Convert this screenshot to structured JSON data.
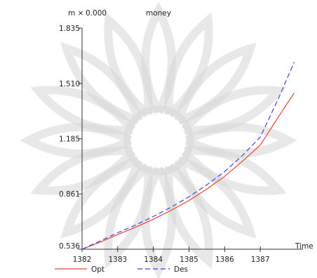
{
  "header": {
    "y_variable": "m ×",
    "y_value": "0.000",
    "title": "money"
  },
  "chart_data": {
    "type": "line",
    "title": "money",
    "xlabel": "Time",
    "ylabel": "",
    "x_ticks": [
      "1382",
      "1383",
      "1384",
      "1385",
      "1386",
      "1387"
    ],
    "y_ticks": [
      "0.536",
      "0.861",
      "1.185",
      "1.510",
      "1.835"
    ],
    "xlim": [
      1382,
      1388.0
    ],
    "ylim": [
      0.536,
      1.835
    ],
    "grid": false,
    "legend_position": "bottom-left",
    "series": [
      {
        "name": "Opt",
        "color": "#e8433a",
        "dash": "solid",
        "x": [
          1382,
          1382.5,
          1383,
          1383.5,
          1384,
          1384.5,
          1385,
          1385.5,
          1386,
          1386.5,
          1387,
          1387.5,
          1387.95
        ],
        "y": [
          0.536,
          0.577,
          0.622,
          0.665,
          0.712,
          0.765,
          0.822,
          0.889,
          0.964,
          1.053,
          1.148,
          1.311,
          1.454
        ]
      },
      {
        "name": "Des",
        "color": "#3b45e0",
        "dash": "dashed",
        "x": [
          1382,
          1382.5,
          1383,
          1383.5,
          1384,
          1384.5,
          1385,
          1385.5,
          1386,
          1386.5,
          1387,
          1387.5,
          1387.95
        ],
        "y": [
          0.536,
          0.584,
          0.633,
          0.678,
          0.728,
          0.783,
          0.844,
          0.914,
          0.992,
          1.087,
          1.195,
          1.418,
          1.635
        ]
      }
    ]
  },
  "colors": {
    "axis": "#333333",
    "watermark": "#d6d6d6"
  }
}
